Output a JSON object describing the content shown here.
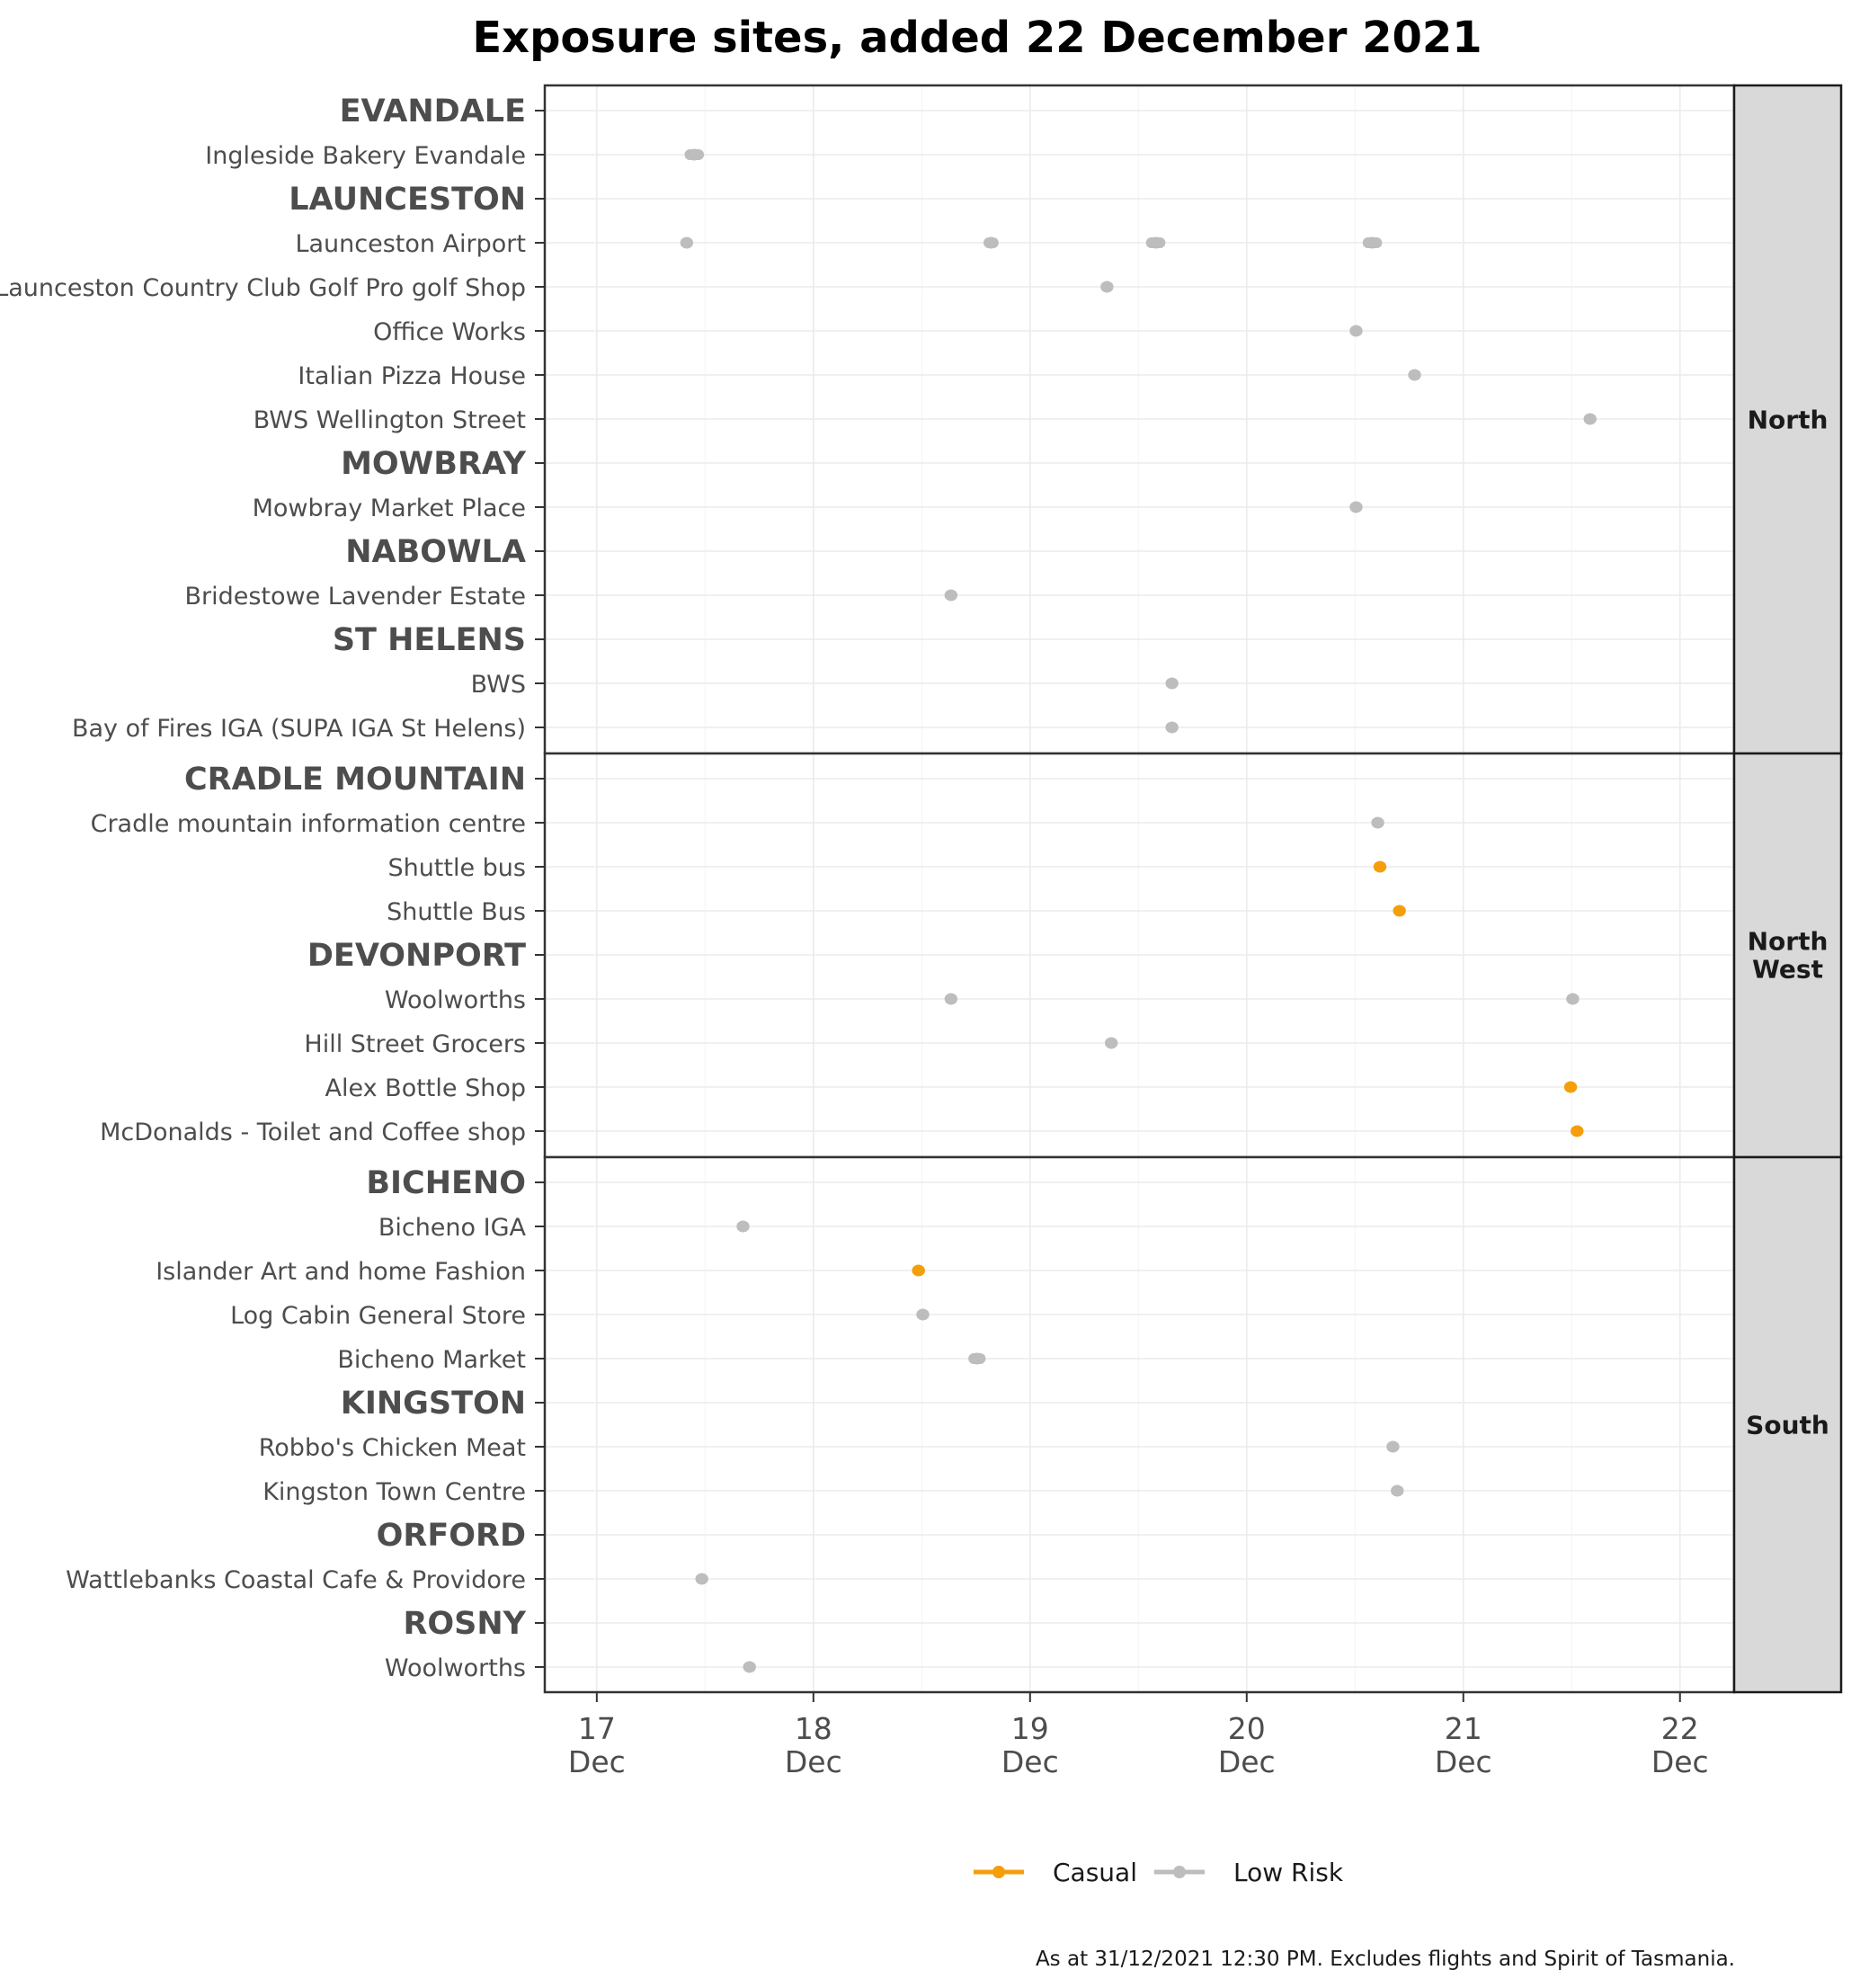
{
  "chart_data": {
    "type": "scatter",
    "title": "Exposure sites, added 22 December 2021",
    "caption": "As at 31/12/2021 12:30 PM. Excludes flights and Spirit of Tasmania.",
    "x_ticks": [
      {
        "value": 17,
        "line1": "17",
        "line2": "Dec"
      },
      {
        "value": 18,
        "line1": "18",
        "line2": "Dec"
      },
      {
        "value": 19,
        "line1": "19",
        "line2": "Dec"
      },
      {
        "value": 20,
        "line1": "20",
        "line2": "Dec"
      },
      {
        "value": 21,
        "line1": "21",
        "line2": "Dec"
      },
      {
        "value": 22,
        "line1": "22",
        "line2": "Dec"
      }
    ],
    "xlim": [
      16.76,
      22.25
    ],
    "legend": [
      {
        "label": "Casual",
        "color": "#f59e0b"
      },
      {
        "label": "Low Risk",
        "color": "#bdbdbd"
      }
    ],
    "colors": {
      "Casual": "#f59e0b",
      "Low Risk": "#bdbdbd"
    },
    "panels": [
      {
        "region": "North",
        "rows": [
          {
            "label": "EVANDALE",
            "kind": "town",
            "points": []
          },
          {
            "label": "Ingleside Bakery Evandale",
            "kind": "site",
            "points": [
              {
                "start": 17.43,
                "end": 17.47,
                "risk": "Low Risk"
              }
            ]
          },
          {
            "label": "LAUNCESTON",
            "kind": "town",
            "points": []
          },
          {
            "label": "Launceston Airport",
            "kind": "site",
            "points": [
              {
                "start": 17.41,
                "end": 17.42,
                "risk": "Low Risk"
              },
              {
                "start": 18.81,
                "end": 18.83,
                "risk": "Low Risk"
              },
              {
                "start": 19.56,
                "end": 19.6,
                "risk": "Low Risk"
              },
              {
                "start": 20.56,
                "end": 20.6,
                "risk": "Low Risk"
              }
            ]
          },
          {
            "label": "Launceston Country Club Golf Pro golf Shop",
            "kind": "site",
            "points": [
              {
                "start": 19.35,
                "end": 19.36,
                "risk": "Low Risk"
              }
            ]
          },
          {
            "label": "Office Works",
            "kind": "site",
            "points": [
              {
                "start": 20.5,
                "end": 20.51,
                "risk": "Low Risk"
              }
            ]
          },
          {
            "label": "Italian Pizza House",
            "kind": "site",
            "points": [
              {
                "start": 20.77,
                "end": 20.78,
                "risk": "Low Risk"
              }
            ]
          },
          {
            "label": "BWS Wellington Street",
            "kind": "site",
            "points": [
              {
                "start": 21.58,
                "end": 21.59,
                "risk": "Low Risk"
              }
            ]
          },
          {
            "label": "MOWBRAY",
            "kind": "town",
            "points": []
          },
          {
            "label": "Mowbray Market Place",
            "kind": "site",
            "points": [
              {
                "start": 20.5,
                "end": 20.51,
                "risk": "Low Risk"
              }
            ]
          },
          {
            "label": "NABOWLA",
            "kind": "town",
            "points": []
          },
          {
            "label": "Bridestowe Lavender Estate",
            "kind": "site",
            "points": [
              {
                "start": 18.63,
                "end": 18.64,
                "risk": "Low Risk"
              }
            ]
          },
          {
            "label": "ST HELENS",
            "kind": "town",
            "points": []
          },
          {
            "label": "BWS",
            "kind": "site",
            "points": [
              {
                "start": 19.65,
                "end": 19.66,
                "risk": "Low Risk"
              }
            ]
          },
          {
            "label": "Bay of Fires IGA (SUPA IGA St Helens)",
            "kind": "site",
            "points": [
              {
                "start": 19.65,
                "end": 19.66,
                "risk": "Low Risk"
              }
            ]
          }
        ]
      },
      {
        "region": "North West",
        "region_lines": [
          "North",
          "West"
        ],
        "rows": [
          {
            "label": "CRADLE MOUNTAIN",
            "kind": "town",
            "points": []
          },
          {
            "label": "Cradle mountain information centre",
            "kind": "site",
            "points": [
              {
                "start": 20.6,
                "end": 20.61,
                "risk": "Low Risk"
              }
            ]
          },
          {
            "label": "Shuttle bus",
            "kind": "site",
            "points": [
              {
                "start": 20.61,
                "end": 20.62,
                "risk": "Casual"
              }
            ]
          },
          {
            "label": "Shuttle Bus",
            "kind": "site",
            "points": [
              {
                "start": 20.7,
                "end": 20.71,
                "risk": "Casual"
              }
            ]
          },
          {
            "label": "DEVONPORT",
            "kind": "town",
            "points": []
          },
          {
            "label": "Woolworths",
            "kind": "site",
            "points": [
              {
                "start": 18.63,
                "end": 18.64,
                "risk": "Low Risk"
              },
              {
                "start": 21.5,
                "end": 21.51,
                "risk": "Low Risk"
              }
            ]
          },
          {
            "label": "Hill Street Grocers",
            "kind": "site",
            "points": [
              {
                "start": 19.37,
                "end": 19.38,
                "risk": "Low Risk"
              }
            ]
          },
          {
            "label": "Alex Bottle Shop",
            "kind": "site",
            "points": [
              {
                "start": 21.49,
                "end": 21.5,
                "risk": "Casual"
              }
            ]
          },
          {
            "label": "McDonalds - Toilet and Coffee shop",
            "kind": "site",
            "points": [
              {
                "start": 21.52,
                "end": 21.53,
                "risk": "Casual"
              }
            ]
          }
        ]
      },
      {
        "region": "South",
        "rows": [
          {
            "label": "BICHENO",
            "kind": "town",
            "points": []
          },
          {
            "label": "Bicheno IGA",
            "kind": "site",
            "points": [
              {
                "start": 17.67,
                "end": 17.68,
                "risk": "Low Risk"
              }
            ]
          },
          {
            "label": "Islander Art and home Fashion",
            "kind": "site",
            "points": [
              {
                "start": 18.48,
                "end": 18.49,
                "risk": "Casual"
              }
            ]
          },
          {
            "label": "Log Cabin General Store",
            "kind": "site",
            "points": [
              {
                "start": 18.5,
                "end": 18.51,
                "risk": "Low Risk"
              }
            ]
          },
          {
            "label": "Bicheno Market",
            "kind": "site",
            "points": [
              {
                "start": 18.74,
                "end": 18.77,
                "risk": "Low Risk"
              }
            ]
          },
          {
            "label": "KINGSTON",
            "kind": "town",
            "points": []
          },
          {
            "label": "Robbo's Chicken Meat",
            "kind": "site",
            "points": [
              {
                "start": 20.67,
                "end": 20.68,
                "risk": "Low Risk"
              }
            ]
          },
          {
            "label": "Kingston Town Centre",
            "kind": "site",
            "points": [
              {
                "start": 20.69,
                "end": 20.7,
                "risk": "Low Risk"
              }
            ]
          },
          {
            "label": "ORFORD",
            "kind": "town",
            "points": []
          },
          {
            "label": "Wattlebanks Coastal Cafe & Providore",
            "kind": "site",
            "points": [
              {
                "start": 17.48,
                "end": 17.49,
                "risk": "Low Risk"
              }
            ]
          },
          {
            "label": "ROSNY",
            "kind": "town",
            "points": []
          },
          {
            "label": "Woolworths",
            "kind": "site",
            "points": [
              {
                "start": 17.7,
                "end": 17.71,
                "risk": "Low Risk"
              }
            ]
          }
        ]
      }
    ]
  }
}
